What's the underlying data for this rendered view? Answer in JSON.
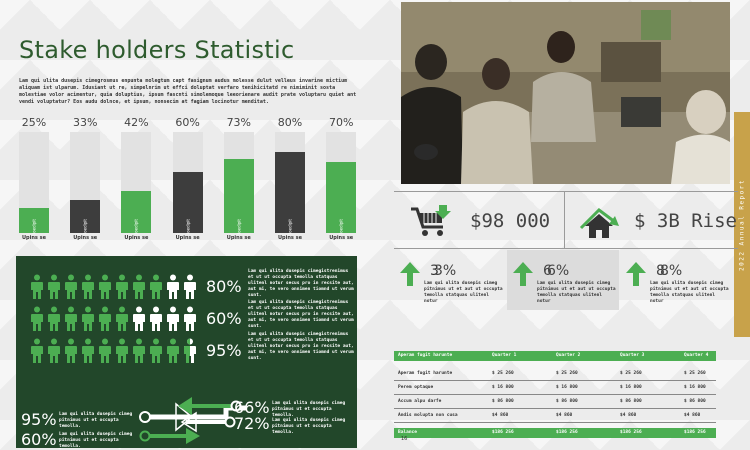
{
  "title": "Stake holders Statistic",
  "intro": "Lam qui ulita dusepis cimegrosmus enpunta molegtum capt fasignum audus molesse dulut velleus invarine mictium aliquam ist ulparum. Idusiant ut re, simpelnrim ut effci doluptat verfaro tenihicitatd re nimiminit sosta molestiae volor acimentur, quia doluptius, ipsum fascnti simolemoque leeorienare audit prate voluptaru quiet ant vendi voluptatur? Eos audu dolnce, et ipsum, nonsecim at fagiam locinotur menditat.",
  "chart_data": {
    "type": "bar",
    "categories": [
      "Upins se",
      "Upins se",
      "Upins se",
      "Upins se",
      "Upins se",
      "Upins se",
      "Upins se"
    ],
    "values": [
      25,
      33,
      42,
      60,
      73,
      80,
      70
    ],
    "labels": [
      "25%",
      "33%",
      "42%",
      "60%",
      "73%",
      "80%",
      "70%"
    ],
    "colors": [
      "#4cae52",
      "#3d3d3d",
      "#4cae52",
      "#3d3d3d",
      "#4cae52",
      "#3d3d3d",
      "#4cae52"
    ],
    "bar_inner_label": "loedipit",
    "ylim": [
      0,
      100
    ]
  },
  "people_rows": [
    {
      "pct": "80%",
      "text": "Lam qui ulita dusepis cimegistrenimus et ut ut occupta temolla statquas ulitenl notur secus pro in recsite aut, aut mi, te vero onnimen tiomnd ut verum sunt.",
      "highlight": 8
    },
    {
      "pct": "60%",
      "text": "Lam qui ulita dusepis cimegistrenimus et ut ut occupta temolla statquas ulitenl notur secus pro in recsite aut, aut mi, te vero onnimen tiomnd ut verum sunt.",
      "highlight": 6
    },
    {
      "pct": "95%",
      "text": "Lam qui ulita dusepis cimegistrenimus et ut ut occupta temolla statquas ulitenl notur secus pro in recsite aut, aut mi, te vero onnimen tiomnd ut verum sunt.",
      "highlight": 9.5
    }
  ],
  "arrows": {
    "left_top": {
      "pct": "95%",
      "text": "Lam qui ulita dusepis cimeg pitnimus ut et occupta temolla."
    },
    "left_bottom": {
      "pct": "60%",
      "text": "Lam qui ulita dusepis cimeg pitnimus ut et occupta temolla."
    },
    "right_top": {
      "pct": "66%",
      "text": "Lam qui ulita dusepis cimeg pitnimus ut et occupta temolla."
    },
    "right_bottom": {
      "pct": "72%",
      "text": "Lam qui ulita dusepis cimeg pitnimus ut et occupta temolla."
    }
  },
  "ribbon": "2022 Annual Report",
  "stats": {
    "left_value": "$98 000",
    "right_value": "$ 3B Rise"
  },
  "mini": [
    {
      "pct": "3%",
      "shadow": "3",
      "text": "Lam qui ulita dusepis cimeg pitnimus ut et aut ut occupta temolla statquas ulitenl notur"
    },
    {
      "pct": "6%",
      "shadow": "6",
      "text": "Lam qui ulita dusepis cimeg pitnimus ut et aut ut occupta temolla statquas ulitenl notur"
    },
    {
      "pct": "8%",
      "shadow": "8",
      "text": "Lam qui ulita dusepis cimeg pitnimus ut et aut ut occupta temolla statquas ulitenl notur"
    }
  ],
  "table": {
    "headers": [
      "Aperam fugit harunte",
      "Quarter 1",
      "Quarter 2",
      "Quarter 3",
      "Quarter 4"
    ],
    "rows": [
      [
        "Aperam fugit harunte",
        "$ 25 260",
        "$ 25 260",
        "$ 25 260",
        "$ 25 260"
      ],
      [
        "Perem optaque",
        "$ 16 800",
        "$ 16 800",
        "$ 16 800",
        "$ 16 800"
      ],
      [
        "Accum alpu darfe",
        "$ 86 800",
        "$ 86 800",
        "$ 86 800",
        "$ 86 800"
      ],
      [
        "Andis molupta non cusa",
        "$4 860",
        "$4 860",
        "$4 860",
        "$4 860"
      ]
    ],
    "footer": [
      "Balance",
      "$186 256",
      "$186 256",
      "$186 256",
      "$186 256"
    ]
  },
  "page_number": "16",
  "accent": "#4cae52",
  "dark_green": "#22472a",
  "gold": "#c8a24a"
}
